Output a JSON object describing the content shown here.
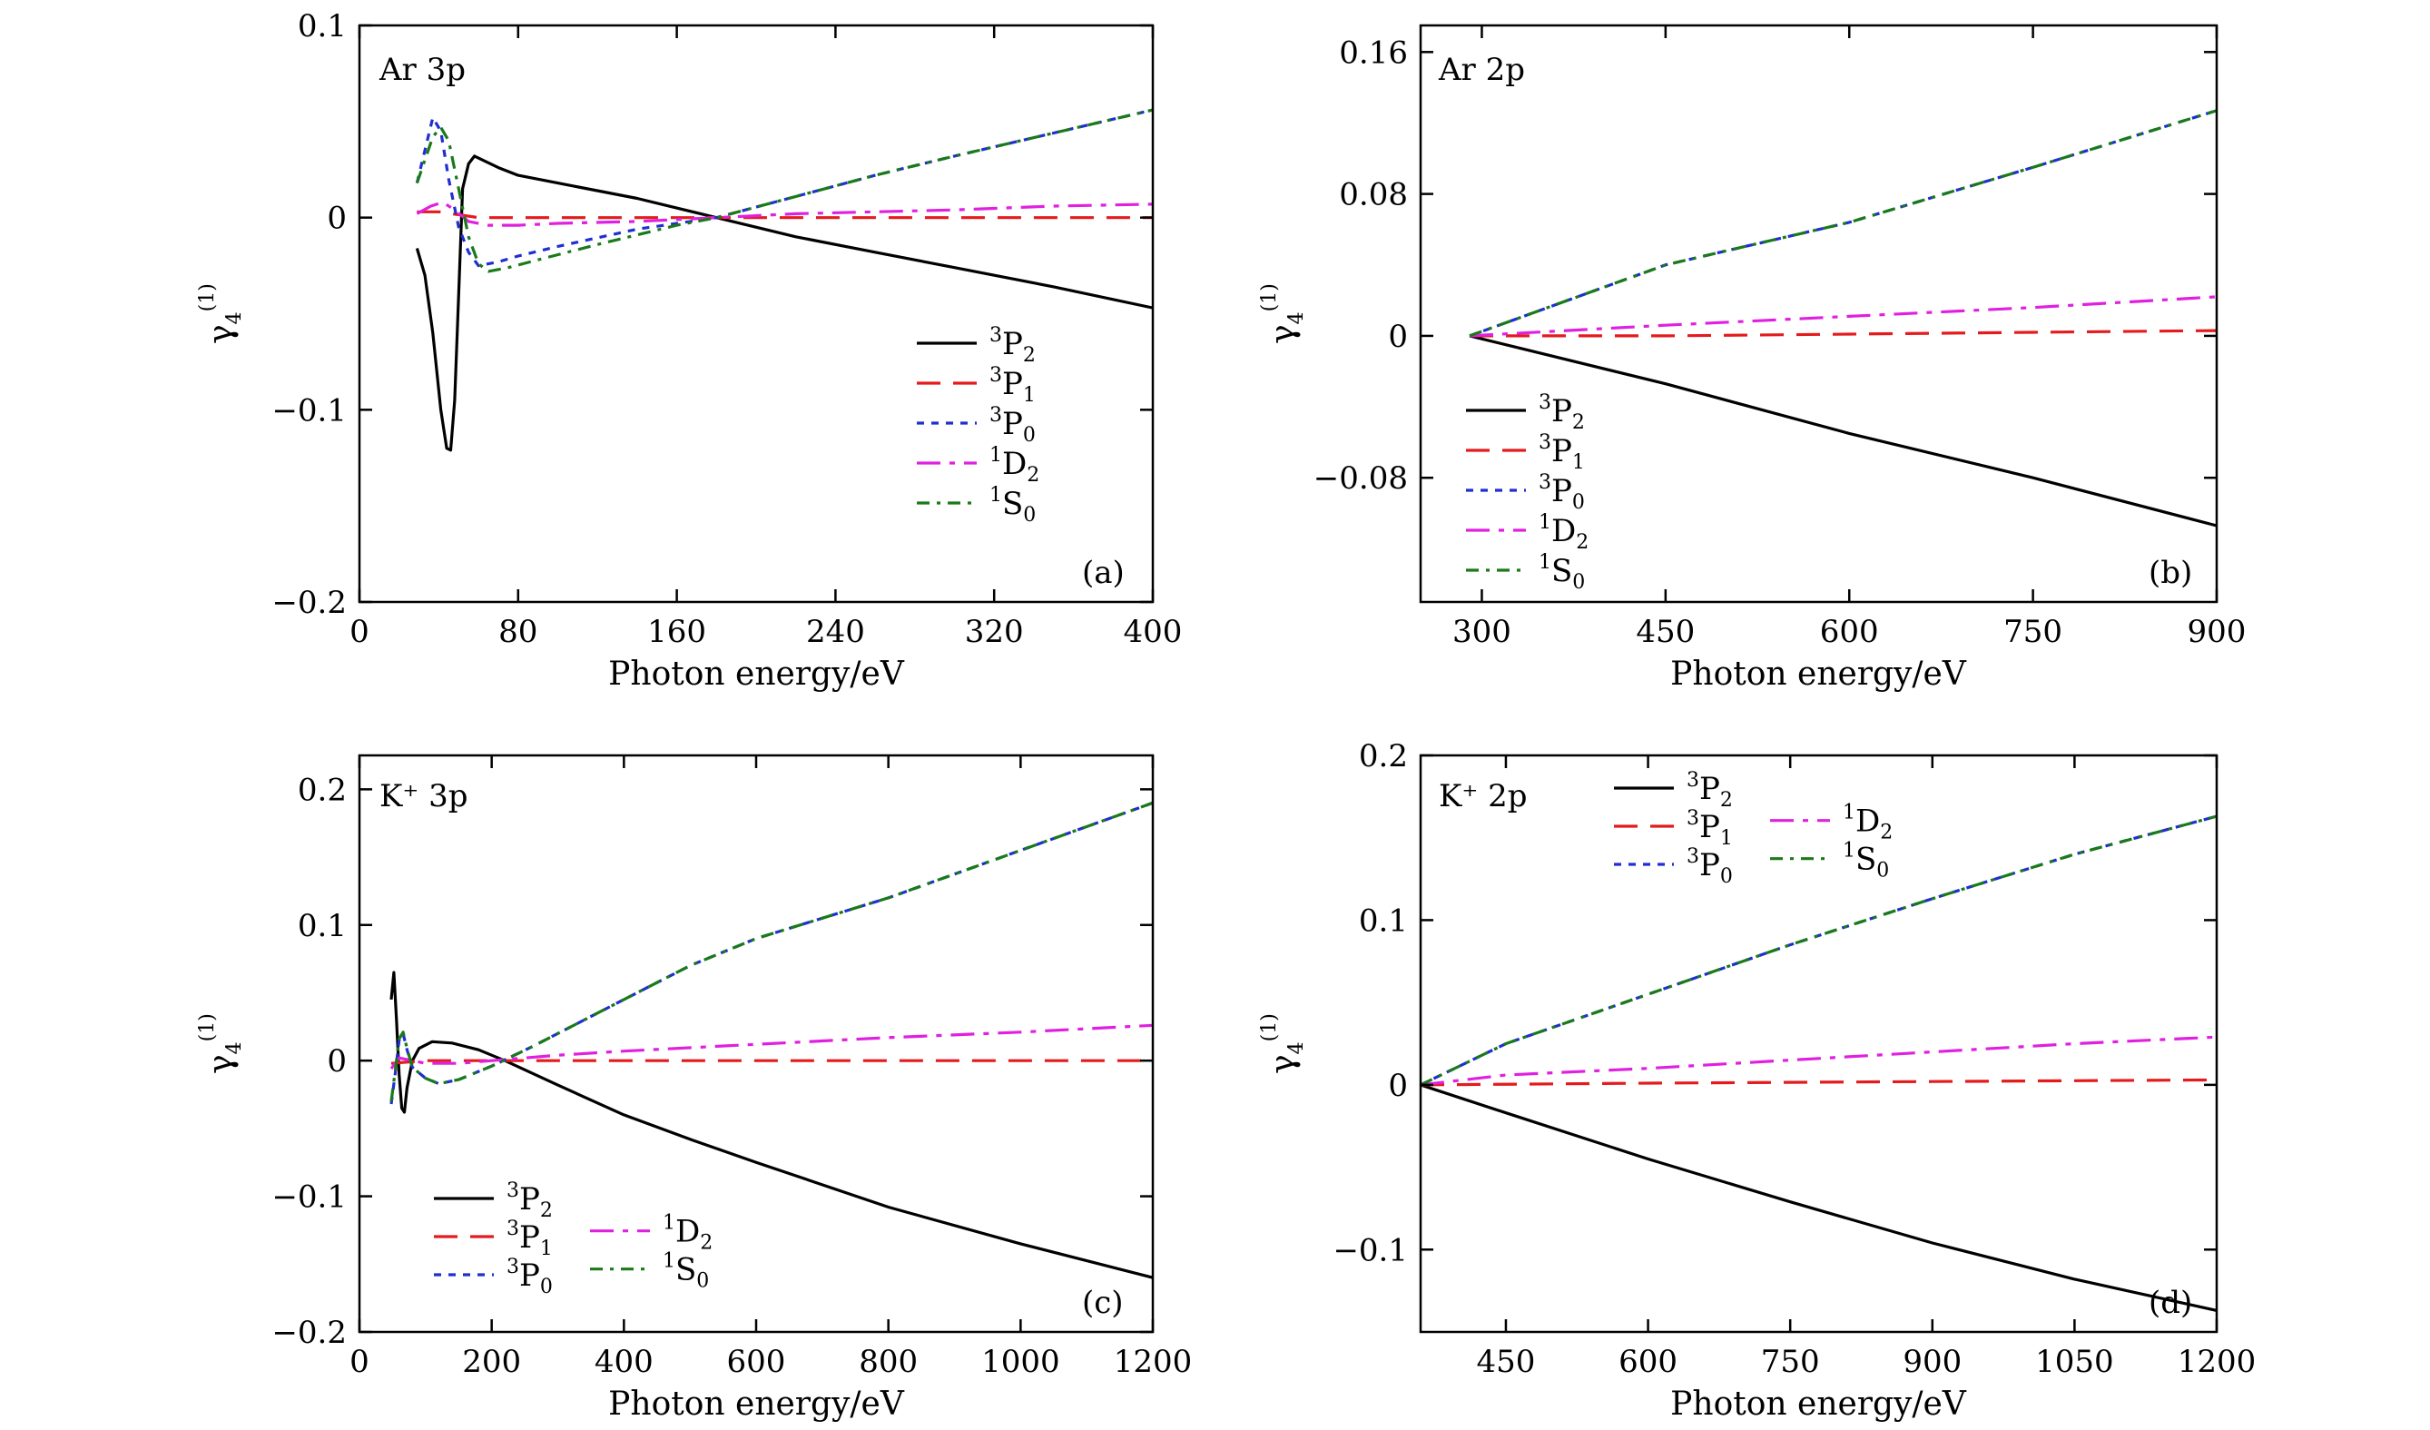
{
  "y_axis_label": "γ",
  "y_axis_sub": "4",
  "y_axis_sup": "(1)",
  "colors": {
    "3P2": "#000000",
    "3P1": "#e41a1c",
    "3P0": "#1f2fd0",
    "1D2": "#e020e0",
    "1S0": "#1a7a1a"
  },
  "legend_labels": {
    "3P2": {
      "sup": "3",
      "base": "P",
      "sub": "2"
    },
    "3P1": {
      "sup": "3",
      "base": "P",
      "sub": "1"
    },
    "3P0": {
      "sup": "3",
      "base": "P",
      "sub": "0"
    },
    "1D2": {
      "sup": "1",
      "base": "D",
      "sub": "2"
    },
    "1S0": {
      "sup": "1",
      "base": "S",
      "sub": "0"
    }
  },
  "chart_data": [
    {
      "type": "line",
      "tag": "Ar 3p",
      "panel": "(a)",
      "xlabel": "Photon energy/eV",
      "xlim": [
        0,
        400
      ],
      "ylim": [
        -0.2,
        0.1
      ],
      "xticks": [
        "0",
        "80",
        "160",
        "240",
        "320",
        "400"
      ],
      "yticks": [
        "−0.2",
        "−0.1",
        "0",
        "0.1"
      ],
      "series": [
        {
          "key": "3P2",
          "x": [
            29,
            33,
            37,
            41,
            44,
            46,
            48,
            50,
            52,
            55,
            58,
            62,
            70,
            80,
            100,
            140,
            180,
            220,
            260,
            300,
            350,
            400
          ],
          "y": [
            -0.016,
            -0.03,
            -0.06,
            -0.1,
            -0.12,
            -0.121,
            -0.095,
            -0.04,
            0.015,
            0.028,
            0.032,
            0.03,
            0.026,
            0.022,
            0.018,
            0.01,
            0.0,
            -0.01,
            -0.018,
            -0.026,
            -0.036,
            -0.047
          ]
        },
        {
          "key": "3P1",
          "x": [
            29,
            40,
            60,
            100,
            150,
            200,
            300,
            400
          ],
          "y": [
            0.003,
            0.003,
            0.0,
            0.0,
            0.0,
            0.0,
            0.0,
            0.0
          ]
        },
        {
          "key": "3P0",
          "x": [
            29,
            33,
            37,
            41,
            45,
            50,
            55,
            60,
            70,
            80,
            100,
            140,
            180,
            220,
            260,
            300,
            350,
            400
          ],
          "y": [
            0.018,
            0.035,
            0.052,
            0.045,
            0.02,
            -0.005,
            -0.018,
            -0.025,
            -0.023,
            -0.02,
            -0.015,
            -0.006,
            0.0,
            0.011,
            0.022,
            0.032,
            0.044,
            0.056
          ]
        },
        {
          "key": "1D2",
          "x": [
            29,
            36,
            42,
            48,
            55,
            65,
            80,
            100,
            140,
            180,
            220,
            260,
            300,
            350,
            400
          ],
          "y": [
            0.002,
            0.006,
            0.008,
            0.004,
            -0.002,
            -0.004,
            -0.004,
            -0.003,
            -0.002,
            0.0,
            0.002,
            0.003,
            0.004,
            0.006,
            0.007
          ]
        },
        {
          "key": "1S0",
          "x": [
            29,
            33,
            37,
            41,
            45,
            50,
            55,
            60,
            65,
            75,
            90,
            120,
            160,
            180,
            220,
            260,
            300,
            350,
            400
          ],
          "y": [
            0.018,
            0.03,
            0.042,
            0.047,
            0.04,
            0.015,
            -0.01,
            -0.024,
            -0.028,
            -0.026,
            -0.022,
            -0.014,
            -0.004,
            0.0,
            0.011,
            0.022,
            0.032,
            0.044,
            0.056
          ]
        }
      ]
    },
    {
      "type": "line",
      "tag": "Ar 2p",
      "panel": "(b)",
      "xlabel": "Photon energy/eV",
      "xlim": [
        250,
        900
      ],
      "ylim": [
        -0.15,
        0.175
      ],
      "xticks": [
        "300",
        "450",
        "600",
        "750",
        "900"
      ],
      "yticks": [
        "−0.08",
        "0",
        "0.08",
        "0.16"
      ],
      "series": [
        {
          "key": "3P2",
          "x": [
            290,
            450,
            600,
            750,
            900
          ],
          "y": [
            0.0,
            -0.027,
            -0.055,
            -0.08,
            -0.107
          ]
        },
        {
          "key": "3P1",
          "x": [
            290,
            450,
            600,
            750,
            900
          ],
          "y": [
            0.0,
            0.0,
            0.001,
            0.002,
            0.003
          ]
        },
        {
          "key": "3P0",
          "x": [
            290,
            450,
            600,
            750,
            900
          ],
          "y": [
            0.0,
            0.04,
            0.064,
            0.095,
            0.127
          ]
        },
        {
          "key": "1D2",
          "x": [
            290,
            450,
            600,
            750,
            900
          ],
          "y": [
            0.0,
            0.006,
            0.011,
            0.016,
            0.022
          ]
        },
        {
          "key": "1S0",
          "x": [
            290,
            450,
            600,
            750,
            900
          ],
          "y": [
            0.0,
            0.04,
            0.064,
            0.095,
            0.127
          ]
        }
      ]
    },
    {
      "type": "line",
      "tag": "K⁺ 3p",
      "panel": "(c)",
      "xlabel": "Photon energy/eV",
      "xlim": [
        0,
        1200
      ],
      "ylim": [
        -0.2,
        0.225
      ],
      "xticks": [
        "0",
        "200",
        "400",
        "600",
        "800",
        "1000",
        "1200"
      ],
      "yticks": [
        "−0.2",
        "−0.1",
        "0",
        "0.1",
        "0.2"
      ],
      "series": [
        {
          "key": "3P2",
          "x": [
            48,
            52,
            56,
            60,
            64,
            68,
            72,
            80,
            90,
            110,
            140,
            180,
            220,
            300,
            400,
            500,
            600,
            800,
            1000,
            1200
          ],
          "y": [
            0.045,
            0.065,
            0.03,
            -0.01,
            -0.035,
            -0.038,
            -0.02,
            0.0,
            0.009,
            0.014,
            0.013,
            0.008,
            0.0,
            -0.018,
            -0.04,
            -0.058,
            -0.075,
            -0.108,
            -0.135,
            -0.16
          ]
        },
        {
          "key": "3P1",
          "x": [
            48,
            100,
            200,
            400,
            800,
            1200
          ],
          "y": [
            -0.002,
            0.0,
            0.0,
            0.0,
            0.0,
            0.0
          ]
        },
        {
          "key": "3P0",
          "x": [
            48,
            54,
            60,
            66,
            72,
            80,
            100,
            120,
            150,
            200,
            260,
            300,
            400,
            500,
            600,
            800,
            1000,
            1200
          ],
          "y": [
            -0.032,
            -0.01,
            0.015,
            0.02,
            0.008,
            -0.005,
            -0.013,
            -0.017,
            -0.014,
            -0.004,
            0.01,
            0.02,
            0.045,
            0.07,
            0.09,
            0.12,
            0.155,
            0.19
          ]
        },
        {
          "key": "1D2",
          "x": [
            48,
            60,
            80,
            100,
            150,
            200,
            300,
            400,
            600,
            800,
            1000,
            1200
          ],
          "y": [
            -0.006,
            0.002,
            0.0,
            -0.002,
            -0.002,
            0.0,
            0.004,
            0.007,
            0.012,
            0.017,
            0.021,
            0.026
          ]
        },
        {
          "key": "1S0",
          "x": [
            48,
            54,
            60,
            66,
            72,
            80,
            100,
            120,
            150,
            200,
            260,
            300,
            400,
            500,
            600,
            800,
            1000,
            1200
          ],
          "y": [
            -0.03,
            -0.008,
            0.016,
            0.021,
            0.009,
            -0.005,
            -0.013,
            -0.017,
            -0.014,
            -0.004,
            0.01,
            0.02,
            0.045,
            0.07,
            0.09,
            0.12,
            0.155,
            0.19
          ]
        }
      ]
    },
    {
      "type": "line",
      "tag": "K⁺ 2p",
      "panel": "(d)",
      "xlabel": "Photon energy/eV",
      "xlim": [
        360,
        1200
      ],
      "ylim": [
        -0.15,
        0.2
      ],
      "xticks": [
        "450",
        "600",
        "750",
        "900",
        "1050",
        "1200"
      ],
      "yticks": [
        "−0.1",
        "0",
        "0.1",
        "0.2"
      ],
      "series": [
        {
          "key": "3P2",
          "x": [
            360,
            450,
            600,
            750,
            900,
            1050,
            1200
          ],
          "y": [
            0.0,
            -0.017,
            -0.045,
            -0.071,
            -0.096,
            -0.118,
            -0.137
          ]
        },
        {
          "key": "3P1",
          "x": [
            360,
            600,
            900,
            1200
          ],
          "y": [
            0.0,
            0.001,
            0.002,
            0.003
          ]
        },
        {
          "key": "3P0",
          "x": [
            360,
            450,
            600,
            750,
            900,
            1050,
            1200
          ],
          "y": [
            0.0,
            0.025,
            0.055,
            0.085,
            0.113,
            0.14,
            0.163
          ]
        },
        {
          "key": "1D2",
          "x": [
            360,
            450,
            600,
            750,
            900,
            1050,
            1200
          ],
          "y": [
            0.0,
            0.006,
            0.01,
            0.015,
            0.02,
            0.025,
            0.029
          ]
        },
        {
          "key": "1S0",
          "x": [
            360,
            450,
            600,
            750,
            900,
            1050,
            1200
          ],
          "y": [
            0.0,
            0.025,
            0.055,
            0.085,
            0.113,
            0.14,
            0.163
          ]
        }
      ]
    }
  ]
}
